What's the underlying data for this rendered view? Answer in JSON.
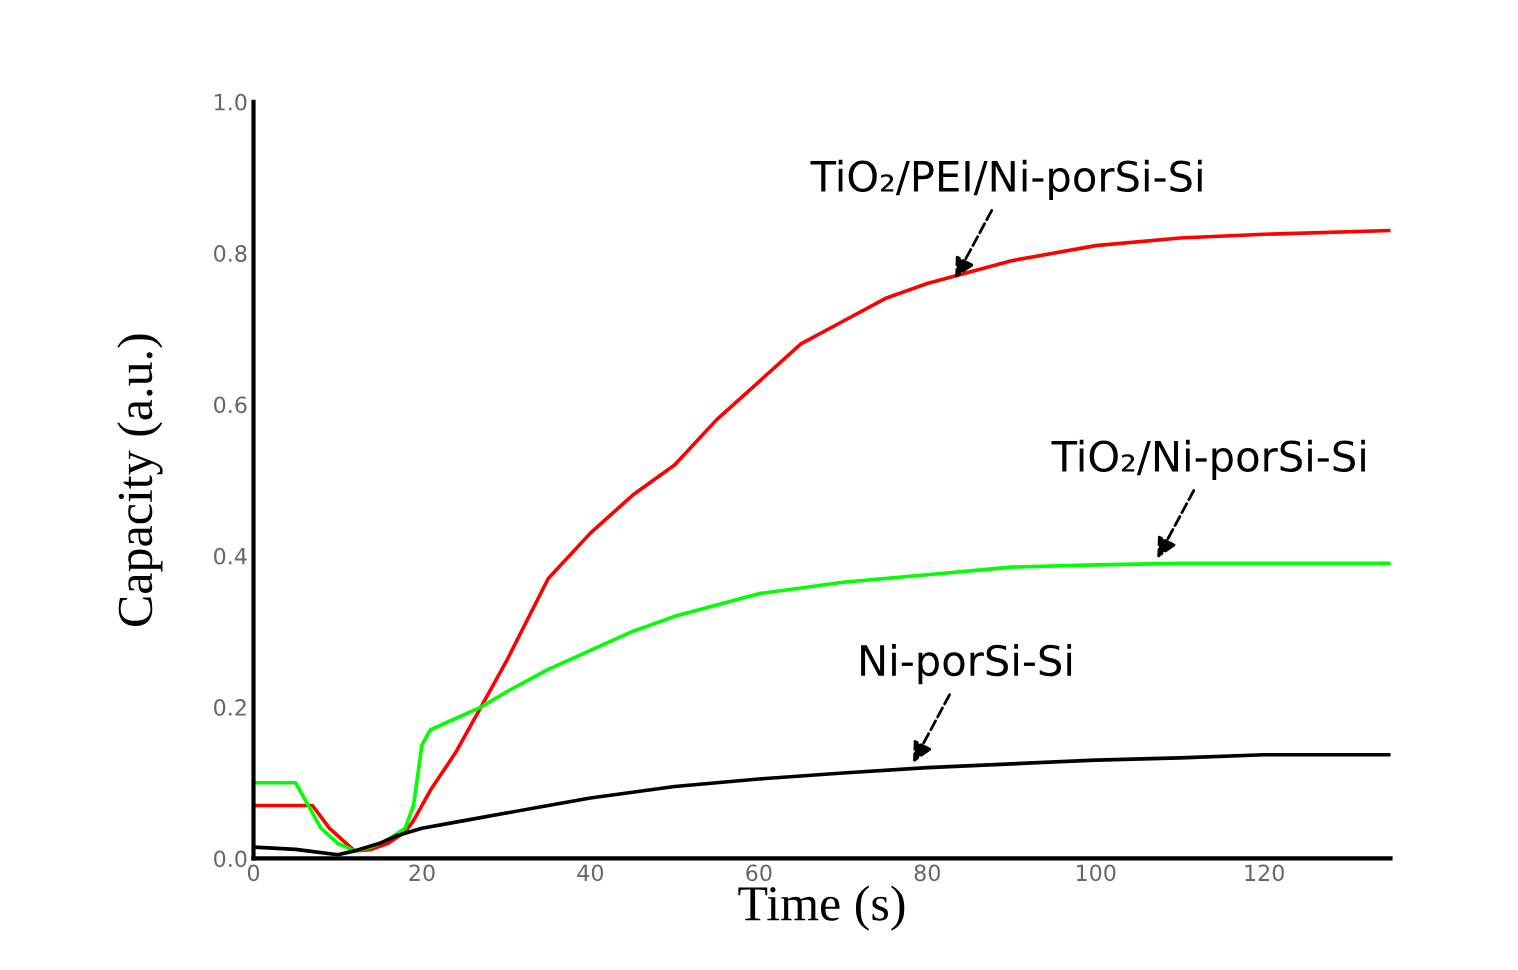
{
  "chart_data": {
    "type": "line",
    "xlabel": "Time (s)",
    "ylabel": "Capacity (a.u.)",
    "xlim": [
      0,
      135
    ],
    "xticks": [
      0,
      20,
      40,
      60,
      80,
      100,
      120
    ],
    "ylim": [
      0,
      1.0
    ],
    "yticks": [
      {
        "value": 0,
        "label": "0.0"
      },
      0.2,
      0.4,
      0.6,
      0.8,
      {
        "value": 1,
        "label": "1.0"
      }
    ],
    "grid": false,
    "legend": false,
    "marker": "none",
    "line_style": "solid",
    "series": [
      {
        "color": "#ff0000",
        "x": [
          0,
          7,
          9,
          11,
          12,
          14,
          16,
          18,
          19,
          21,
          24,
          27,
          30,
          35,
          40,
          45,
          50,
          55,
          60,
          65,
          70,
          75,
          80,
          90,
          100,
          110,
          120,
          135
        ],
        "values": [
          0.07,
          0.07,
          0.04,
          0.02,
          0.01,
          0.012,
          0.02,
          0.035,
          0.05,
          0.09,
          0.14,
          0.2,
          0.26,
          0.37,
          0.43,
          0.48,
          0.52,
          0.58,
          0.63,
          0.68,
          0.71,
          0.74,
          0.76,
          0.79,
          0.81,
          0.82,
          0.825,
          0.83
        ]
      },
      {
        "color": "#00ff00",
        "x": [
          0,
          5,
          6,
          8,
          10,
          12,
          14,
          16,
          18,
          19,
          19.5,
          20,
          21,
          24,
          27,
          30,
          35,
          40,
          45,
          50,
          60,
          70,
          80,
          90,
          100,
          110,
          120,
          135
        ],
        "values": [
          0.1,
          0.1,
          0.08,
          0.04,
          0.02,
          0.01,
          0.015,
          0.025,
          0.04,
          0.07,
          0.11,
          0.15,
          0.17,
          0.185,
          0.2,
          0.22,
          0.25,
          0.275,
          0.3,
          0.32,
          0.35,
          0.365,
          0.375,
          0.385,
          0.388,
          0.39,
          0.39,
          0.39
        ]
      },
      {
        "color": "#000000",
        "x": [
          0,
          5,
          10,
          12,
          15,
          17,
          20,
          25,
          30,
          35,
          40,
          50,
          60,
          70,
          80,
          90,
          100,
          110,
          120,
          135
        ],
        "values": [
          0.015,
          0.012,
          0.005,
          0.01,
          0.02,
          0.03,
          0.04,
          0.05,
          0.06,
          0.07,
          0.08,
          0.095,
          0.105,
          0.113,
          0.12,
          0.125,
          0.13,
          0.133,
          0.137,
          0.137
        ]
      }
    ],
    "annotations": [
      {
        "text": "TiO₂/PEI/Ni-porSi-Si",
        "x": 83,
        "y": 0.76
      },
      {
        "text": "TiO₂/Ni-porSi-Si",
        "x": 107,
        "y": 0.39
      },
      {
        "text": "Ni-porSi-Si",
        "x": 78,
        "y": 0.12
      }
    ]
  }
}
